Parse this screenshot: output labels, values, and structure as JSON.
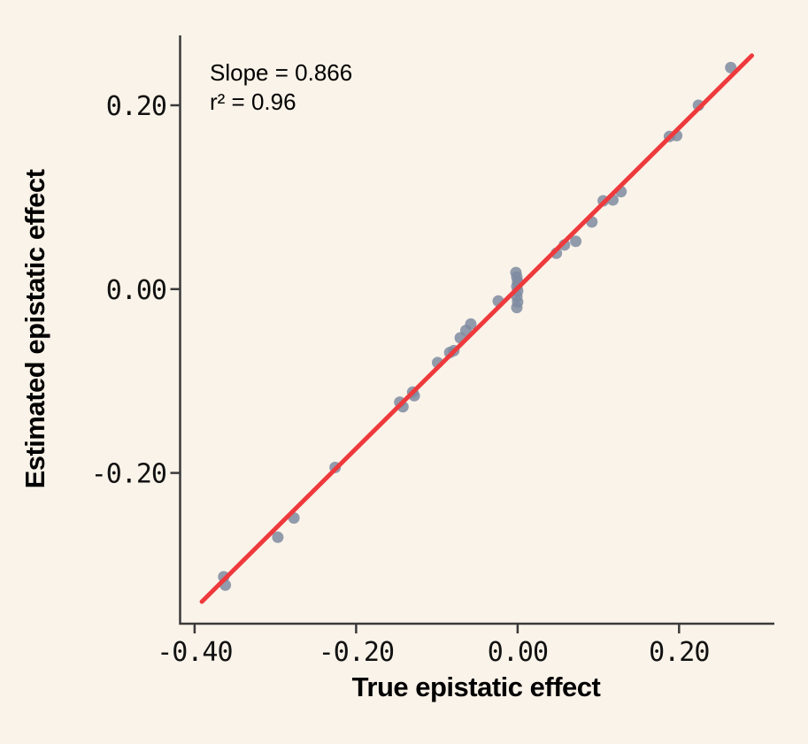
{
  "chart_data": {
    "type": "scatter",
    "xlabel": "True epistatic effect",
    "ylabel": "Estimated epistatic effect",
    "annotations": {
      "slope_text": "Slope = 0.866",
      "r_squared_text": "r² = 0.96"
    },
    "xlim": [
      -0.418,
      0.318
    ],
    "ylim": [
      -0.364,
      0.276
    ],
    "x_ticks": [
      {
        "value": -0.4,
        "label": "-0.40"
      },
      {
        "value": -0.2,
        "label": "-0.20"
      },
      {
        "value": 0.0,
        "label": "0.00"
      },
      {
        "value": 0.2,
        "label": "0.20"
      }
    ],
    "y_ticks": [
      {
        "value": 0.2,
        "label": "0.20"
      },
      {
        "value": 0.0,
        "label": "0.00"
      },
      {
        "value": -0.2,
        "label": "-0.20"
      }
    ],
    "fit_line": {
      "slope": 0.866,
      "r_squared": 0.96,
      "x_start": -0.391,
      "y_start": -0.34,
      "x_end": 0.29,
      "y_end": 0.254
    },
    "points": [
      [
        -0.364,
        -0.313
      ],
      [
        -0.362,
        -0.322
      ],
      [
        -0.297,
        -0.27
      ],
      [
        -0.277,
        -0.249
      ],
      [
        -0.226,
        -0.194
      ],
      [
        -0.146,
        -0.123
      ],
      [
        -0.142,
        -0.128
      ],
      [
        -0.13,
        -0.112
      ],
      [
        -0.128,
        -0.116
      ],
      [
        -0.099,
        -0.08
      ],
      [
        -0.084,
        -0.069
      ],
      [
        -0.079,
        -0.067
      ],
      [
        -0.071,
        -0.053
      ],
      [
        -0.064,
        -0.045
      ],
      [
        -0.058,
        -0.038
      ],
      [
        -0.024,
        -0.013
      ],
      [
        -0.002,
        0.018
      ],
      [
        -0.001,
        0.013
      ],
      [
        0.0,
        0.008
      ],
      [
        -0.001,
        0.003
      ],
      [
        0.0,
        -0.002
      ],
      [
        -0.001,
        -0.008
      ],
      [
        0.0,
        -0.014
      ],
      [
        -0.001,
        -0.02
      ],
      [
        0.048,
        0.039
      ],
      [
        0.058,
        0.048
      ],
      [
        0.072,
        0.052
      ],
      [
        0.092,
        0.073
      ],
      [
        0.106,
        0.096
      ],
      [
        0.118,
        0.097
      ],
      [
        0.128,
        0.106
      ],
      [
        0.188,
        0.166
      ],
      [
        0.197,
        0.167
      ],
      [
        0.224,
        0.2
      ],
      [
        0.264,
        0.241
      ]
    ],
    "grid": false,
    "legend": false,
    "colors": {
      "background": "#faf3e9",
      "line": "#ee3a3c",
      "point": "#7e8ba0",
      "axis": "#3a3a3a",
      "text": "#111111"
    }
  }
}
